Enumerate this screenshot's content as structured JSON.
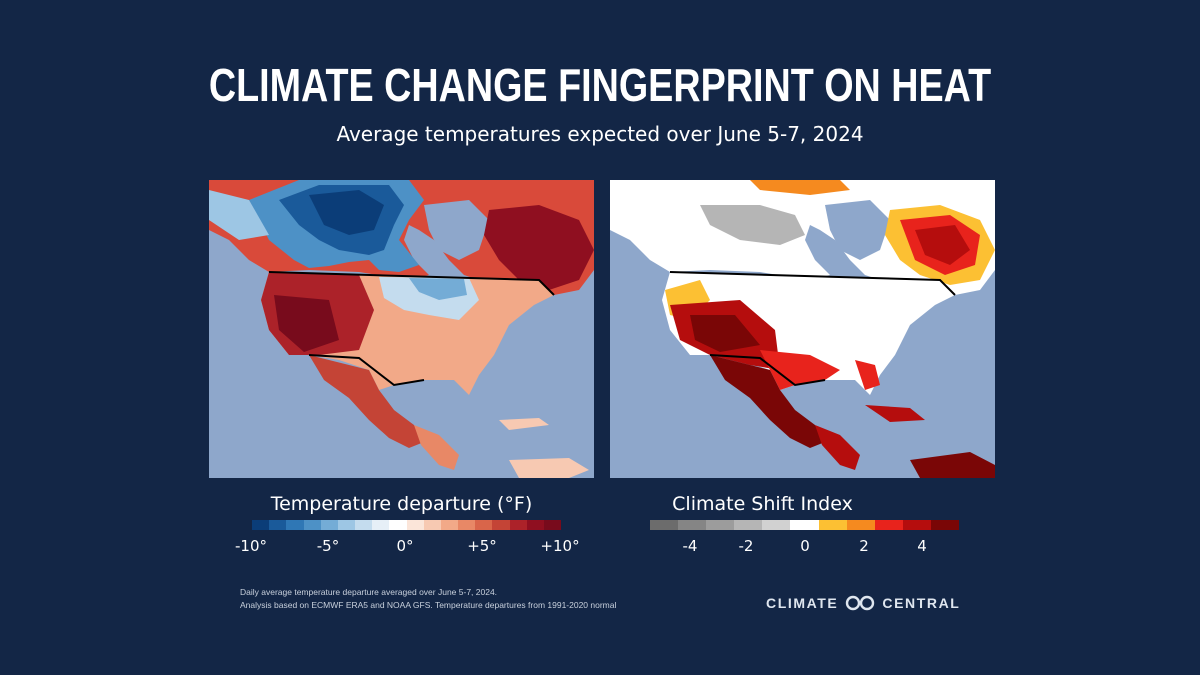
{
  "header": {
    "title": "CLIMATE CHANGE FINGERPRINT ON HEAT",
    "subtitle": "Average temperatures expected over June 5-7, 2024"
  },
  "maps": [
    {
      "name": "temperature-departure",
      "legend_title": "Temperature departure (°F)",
      "colors": [
        "#0b3d78",
        "#1a5a9a",
        "#2f77b5",
        "#4d91c6",
        "#74acd6",
        "#9dc6e4",
        "#c4dcee",
        "#e6eff7",
        "#ffffff",
        "#fbe5d9",
        "#f7c9b2",
        "#f2a988",
        "#e88866",
        "#d9654a",
        "#c44436",
        "#ac2229",
        "#8f0f20",
        "#780b1c"
      ],
      "ticks": [
        "-10°",
        "-5°",
        "0°",
        "+5°",
        "+10°"
      ],
      "tick_values": [
        -10,
        -5,
        0,
        5,
        10
      ]
    },
    {
      "name": "climate-shift-index",
      "legend_title": "Climate Shift Index",
      "colors": [
        "#6c6c6c",
        "#858585",
        "#9c9c9c",
        "#b5b5b5",
        "#d1d1d1",
        "#ffffff",
        "#fcc033",
        "#f58a1f",
        "#e8231c",
        "#b50d0d",
        "#7a0606"
      ],
      "ticks": [
        "-4",
        "-2",
        "0",
        "2",
        "4"
      ],
      "tick_values": [
        -4,
        -2,
        0,
        2,
        4
      ]
    }
  ],
  "footer": {
    "note_line1": "Daily average temperature departure averaged over June 5-7, 2024.",
    "note_line2": "Analysis based on ECMWF ERA5 and NOAA GFS. Temperature departures from 1991-2020 normal",
    "logo_text_1": "CLIMATE",
    "logo_text_2": "CENTRAL"
  }
}
